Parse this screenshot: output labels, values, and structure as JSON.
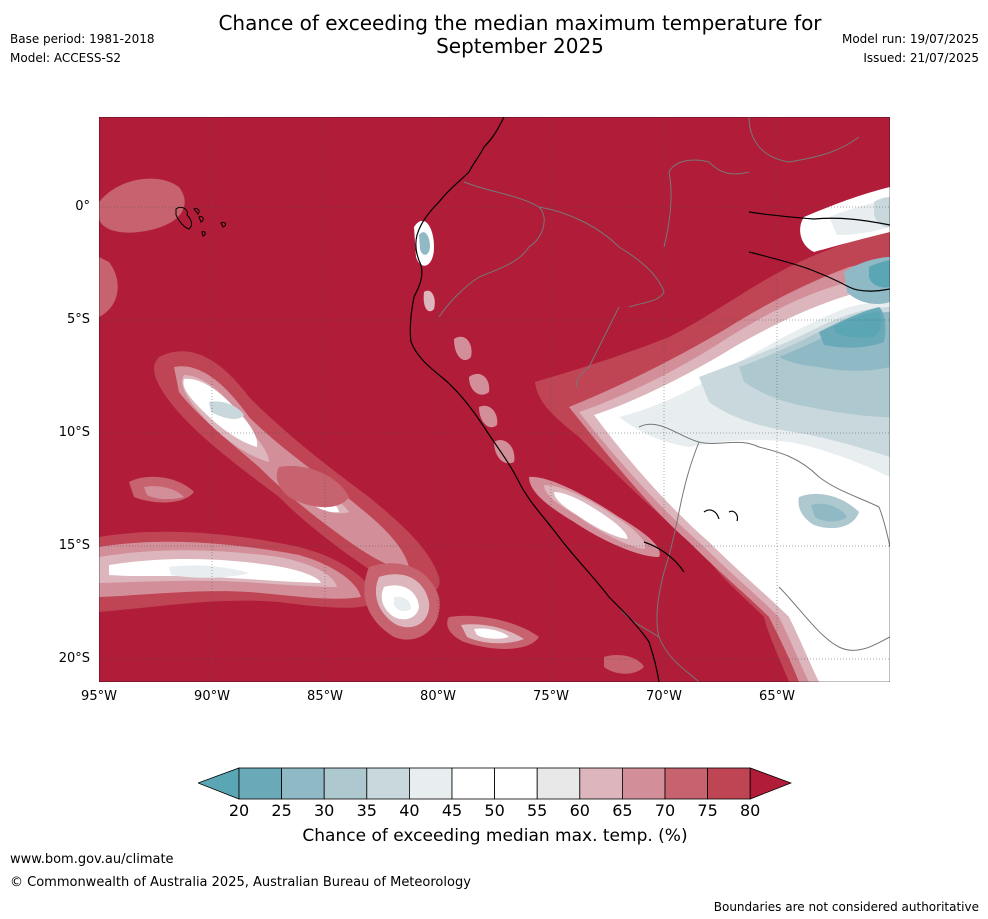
{
  "header": {
    "title_line1": "Chance of exceeding the median maximum temperature for",
    "title_line2": "September 2025",
    "base_period": "Base period: 1981-2018",
    "model": "Model: ACCESS-S2",
    "model_run": "Model run: 19/07/2025",
    "issued": "Issued: 21/07/2025"
  },
  "map": {
    "lat_labels": [
      "0°",
      "5°S",
      "10°S",
      "15°S",
      "20°S"
    ],
    "lon_labels": [
      "95°W",
      "90°W",
      "85°W",
      "80°W",
      "75°W",
      "70°W",
      "65°W"
    ],
    "background_color": "#b11c38"
  },
  "colorbar": {
    "ticks": [
      "20",
      "25",
      "30",
      "35",
      "40",
      "45",
      "50",
      "55",
      "60",
      "65",
      "70",
      "75",
      "80"
    ],
    "colors": [
      "#5aa6b4",
      "#6aaab8",
      "#8fb9c5",
      "#adc8ce",
      "#c9d8dc",
      "#e8eef0",
      "#ffffff",
      "#ffffff",
      "#e8e8e8",
      "#dcb6bc",
      "#d38f99",
      "#c7626f",
      "#bf4555",
      "#b11c38"
    ],
    "label": "Chance of exceeding median max. temp. (%)"
  },
  "footer": {
    "url": "www.bom.gov.au/climate",
    "copyright": "© Commonwealth of Australia 2025, Australian Bureau of Meteorology",
    "disclaimer": "Boundaries are not considered authoritative"
  }
}
